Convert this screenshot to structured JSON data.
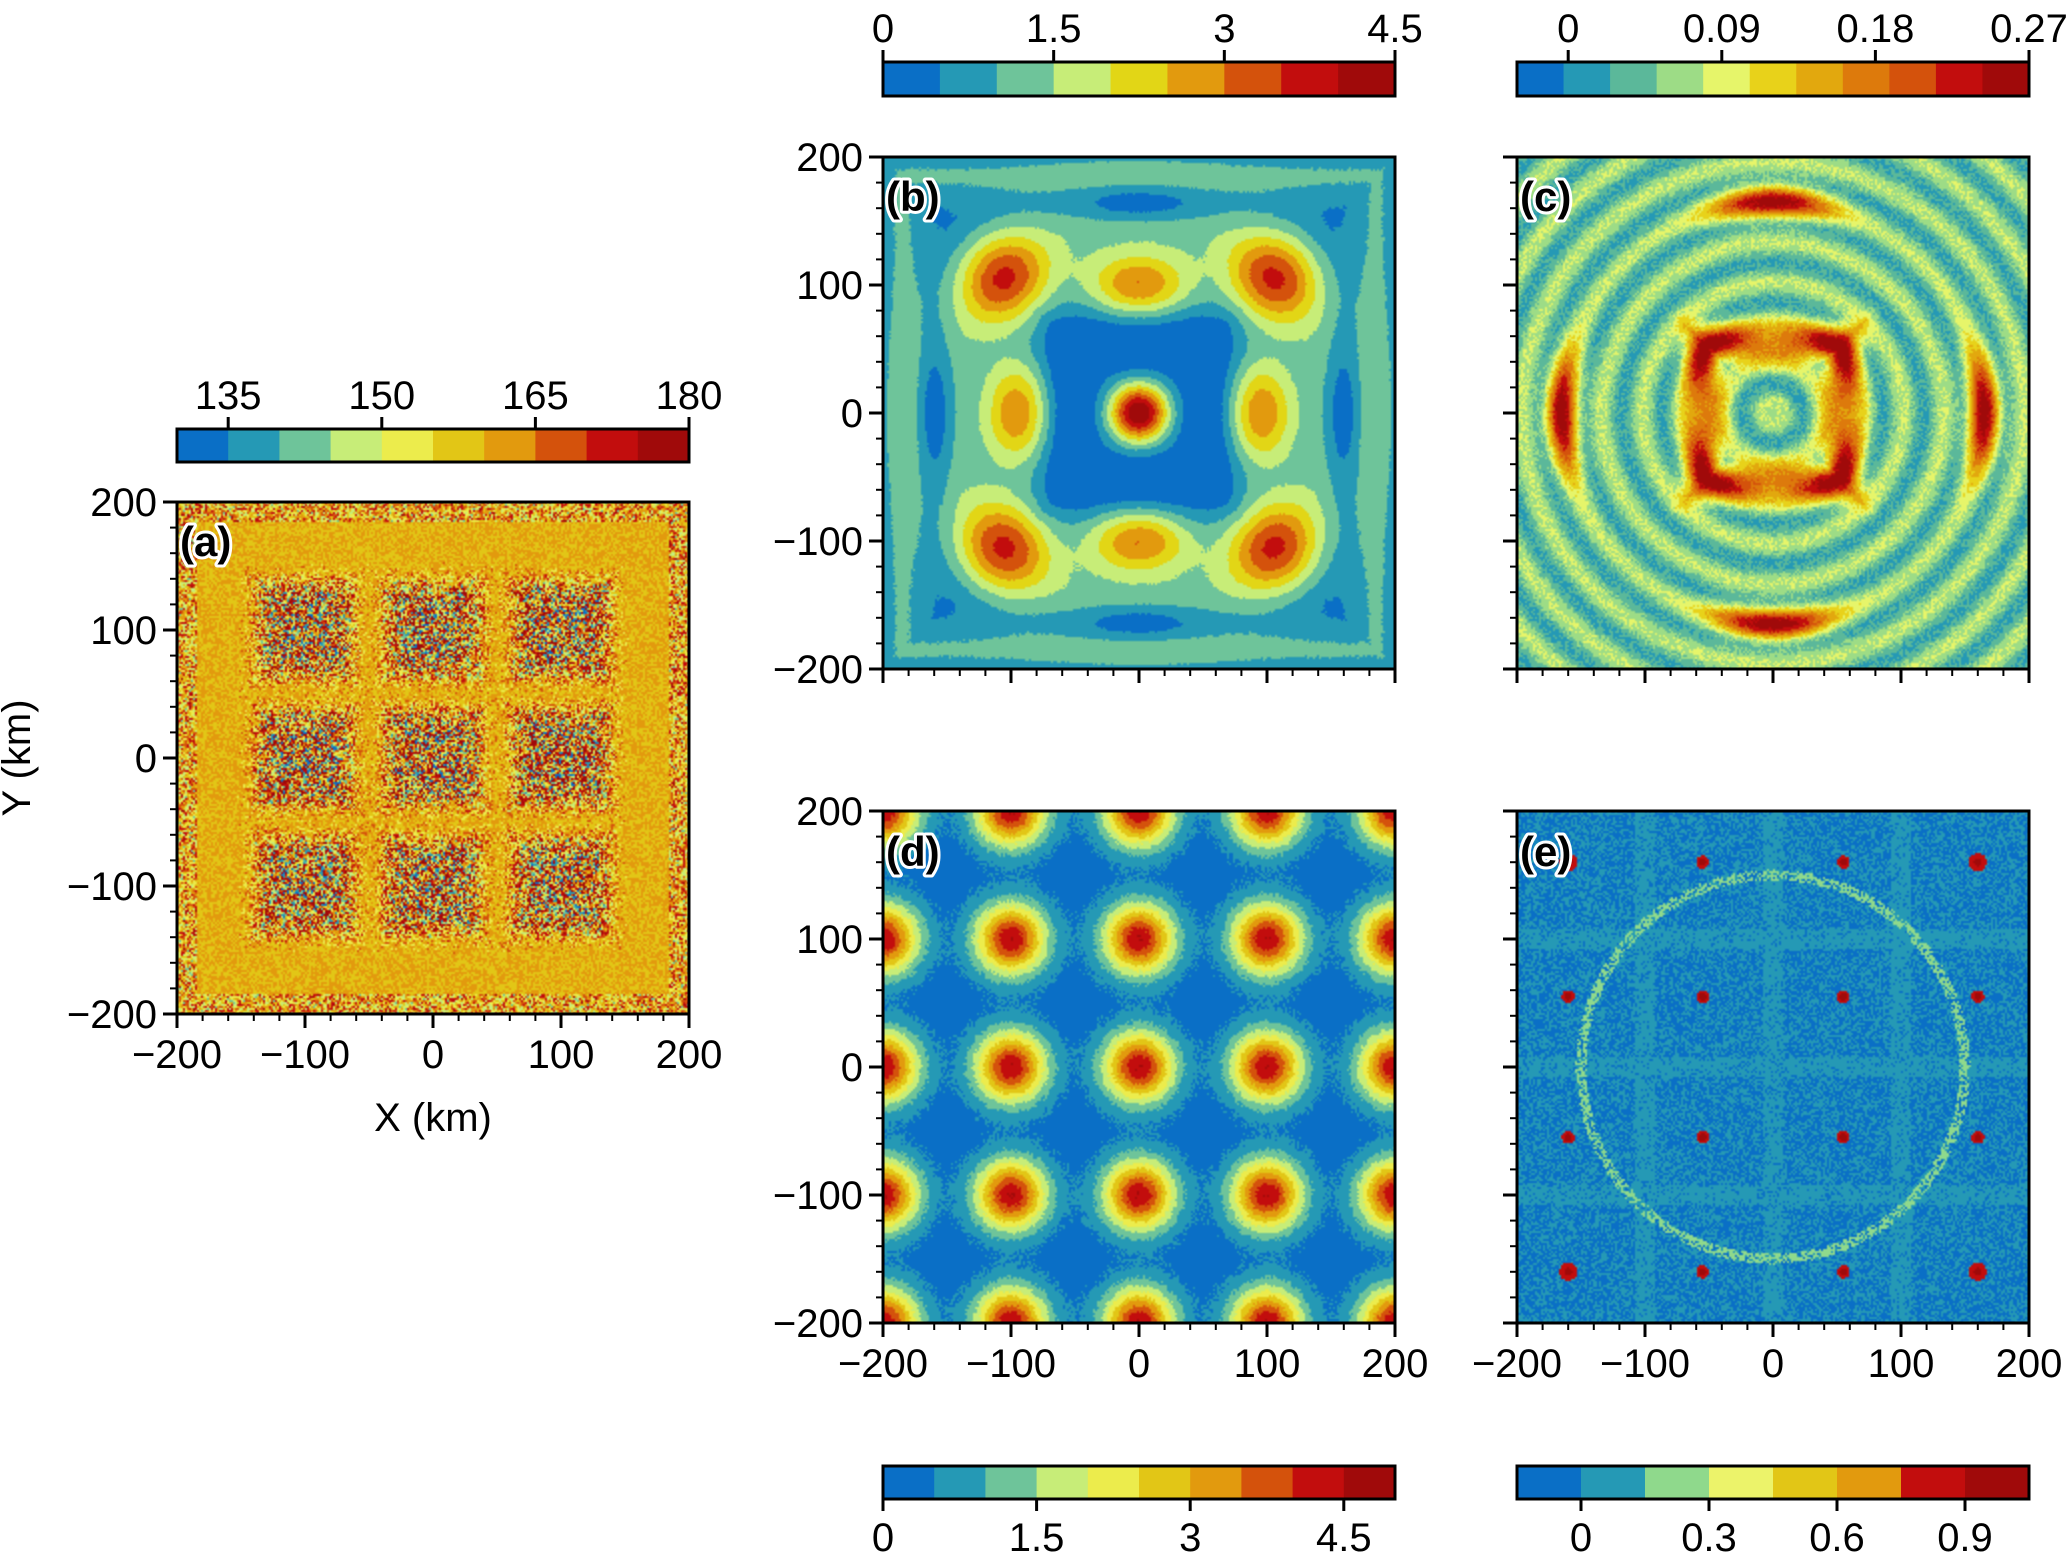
{
  "palette": {
    "p10": [
      "#0a6fc6",
      "#2599b5",
      "#6ec49a",
      "#c7ed78",
      "#ecec4c",
      "#e2c616",
      "#e29a0e",
      "#d4520c",
      "#c20d0d",
      "#a00a0a"
    ],
    "p9": [
      "#0a6fc6",
      "#2599b5",
      "#6ec49a",
      "#c7ed78",
      "#e2d616",
      "#e29a0e",
      "#d4520c",
      "#c20d0d",
      "#a00a0a"
    ],
    "p11": [
      "#0a6fc6",
      "#2599b5",
      "#5bb89a",
      "#9ddc86",
      "#e6f56a",
      "#e8d21a",
      "#e2a80e",
      "#dd7a0c",
      "#d4520c",
      "#c20d0d",
      "#a00a0a"
    ],
    "p8": [
      "#0a6fc6",
      "#2599b5",
      "#8fd98c",
      "#ecf36a",
      "#e2c616",
      "#e29a0e",
      "#c20d0d",
      "#a00a0a"
    ]
  },
  "chart_data": [
    {
      "id": "a",
      "type": "heatmap",
      "panel_label": "(a)",
      "xlabel": "X (km)",
      "ylabel": "Y (km)",
      "xlim": [
        -200,
        200
      ],
      "ylim": [
        -200,
        200
      ],
      "xticks": [
        -200,
        -100,
        0,
        100,
        200
      ],
      "yticks": [
        -200,
        -100,
        0,
        100,
        200
      ],
      "xtick_labels": [
        "−200",
        "−100",
        "0",
        "100",
        "200"
      ],
      "ytick_labels": [
        "−200",
        "−100",
        "0",
        "100",
        "200"
      ],
      "pattern": "speckled field centred on a 3 x 3 grid of cells at x, y = -100, 0, 100 km; values near 160 between cells",
      "background_value": 160,
      "colorbar": {
        "range": [
          130,
          180
        ],
        "ticks": [
          135,
          150,
          165,
          180
        ],
        "tick_labels": [
          "135",
          "150",
          "165",
          "180"
        ],
        "palette": "p10"
      }
    },
    {
      "id": "b",
      "type": "heatmap",
      "panel_label": "(b)",
      "xlim": [
        -200,
        200
      ],
      "ylim": [
        -200,
        200
      ],
      "yticks": [
        -200,
        -100,
        0,
        100,
        200
      ],
      "ytick_labels": [
        "−200",
        "−100",
        "0",
        "100",
        "200"
      ],
      "pattern": "concentric rings: peak ~4.3 at the centre, blue ring around it, side maxima near (0, ±100) and (±100, 0), outer diagonal maxima",
      "peak_value": 4.3,
      "colorbar": {
        "range": [
          0,
          4.5
        ],
        "ticks": [
          0,
          1.5,
          3,
          4.5
        ],
        "tick_labels": [
          "0",
          "1.5",
          "3",
          "4.5"
        ],
        "palette": "p9"
      }
    },
    {
      "id": "c",
      "type": "heatmap",
      "panel_label": "(c)",
      "xlim": [
        -200,
        200
      ],
      "ylim": [
        -200,
        200
      ],
      "pattern": "square ring of maxima ~0.24 around |x|,|y| ~ 50 km; outer arcs ~0.25 at about 165 km from the centre",
      "peak_value": 0.25,
      "colorbar": {
        "range": [
          -0.03,
          0.27
        ],
        "ticks": [
          0,
          0.09,
          0.18,
          0.27
        ],
        "tick_labels": [
          "0",
          "0.09",
          "0.18",
          "0.27"
        ],
        "palette": "p11"
      }
    },
    {
      "id": "d",
      "type": "heatmap",
      "panel_label": "(d)",
      "xlim": [
        -200,
        200
      ],
      "ylim": [
        -200,
        200
      ],
      "xticks": [
        -200,
        -100,
        0,
        100,
        200
      ],
      "yticks": [
        -200,
        -100,
        0,
        100,
        200
      ],
      "xtick_labels": [
        "−200",
        "−100",
        "0",
        "100",
        "200"
      ],
      "ytick_labels": [
        "−200",
        "−100",
        "0",
        "100",
        "200"
      ],
      "pattern": "periodic blobs with peaks ~4.2 at x, y in {-200, -100, 0, 100, 200} km",
      "peak_value": 4.2,
      "colorbar": {
        "range": [
          0,
          5
        ],
        "ticks": [
          0,
          1.5,
          3,
          4.5
        ],
        "tick_labels": [
          "0",
          "1.5",
          "3",
          "4.5"
        ],
        "palette": "p10"
      }
    },
    {
      "id": "e",
      "type": "heatmap",
      "panel_label": "(e)",
      "xlim": [
        -200,
        200
      ],
      "ylim": [
        -200,
        200
      ],
      "xticks": [
        -200,
        -100,
        0,
        100,
        200
      ],
      "xtick_labels": [
        "−200",
        "−100",
        "0",
        "100",
        "200"
      ],
      "pattern": "mostly near zero with faint grid lines; isolated hot spots ~0.9 at x, y in {-160, -55, 55, 160} km",
      "peak_value": 0.95,
      "hot_spots": [
        -160,
        -55,
        55,
        160
      ],
      "colorbar": {
        "range": [
          -0.15,
          1.05
        ],
        "ticks": [
          0,
          0.3,
          0.6,
          0.9
        ],
        "tick_labels": [
          "0",
          "0.3",
          "0.6",
          "0.9"
        ],
        "palette": "p8"
      }
    }
  ]
}
